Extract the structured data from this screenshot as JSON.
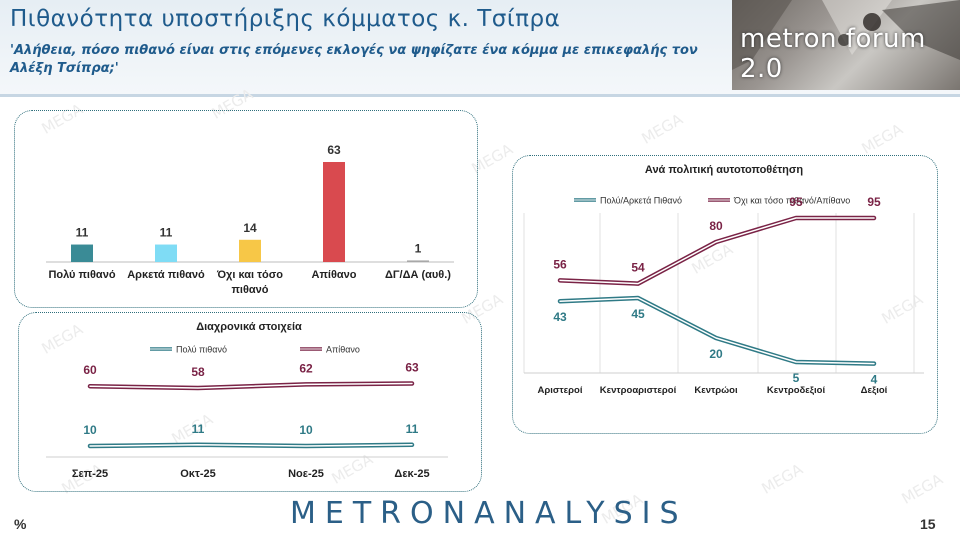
{
  "header": {
    "title": "Πιθανότητα υποστήριξης κόμματος κ. Τσίπρα",
    "subtitle": "'Αλήθεια, πόσο πιθανό είναι στις επόμενες εκλογές να ψηφίζατε ένα κόμμα με επικεφαλής τον Αλέξη Τσίπρα;'",
    "forum_label": "metron forum 2.0"
  },
  "footer": {
    "unit": "%",
    "brand": "METRONANALYSIS",
    "page": "15"
  },
  "watermark": "MEGA",
  "colors": {
    "series_teal": "#2f7a86",
    "series_maroon": "#7a2346",
    "bar_teal": "#3a8b96",
    "bar_cyan": "#7fdcf5",
    "bar_yellow": "#f7c747",
    "bar_red": "#d94a4f",
    "bar_gray": "#a8a8a8"
  },
  "chart_data": [
    {
      "type": "bar",
      "title": "",
      "categories": [
        "Πολύ πιθανό",
        "Αρκετά πιθανό",
        "Όχι και τόσο πιθανό",
        "Απίθανο",
        "ΔΓ/ΔΑ (αυθ.)"
      ],
      "category_lines": [
        [
          "Πολύ πιθανό"
        ],
        [
          "Αρκετά πιθανό"
        ],
        [
          "Όχι και τόσο",
          "πιθανό"
        ],
        [
          "Απίθανο"
        ],
        [
          "ΔΓ/ΔΑ (αυθ.)"
        ]
      ],
      "values": [
        11,
        11,
        14,
        63,
        1
      ],
      "ylim": [
        0,
        70
      ],
      "grid": false
    },
    {
      "type": "line",
      "title": "Διαχρονικά στοιχεία",
      "categories": [
        "Σεπ-25",
        "Οκτ-25",
        "Νοε-25",
        "Δεκ-25"
      ],
      "series": [
        {
          "name": "Πολύ πιθανό",
          "values": [
            10,
            11,
            10,
            11
          ]
        },
        {
          "name": "Απίθανο",
          "values": [
            60,
            58,
            62,
            63
          ]
        }
      ],
      "ylim": [
        0,
        70
      ],
      "legend": "top",
      "grid": false
    },
    {
      "type": "line",
      "title": "Ανά πολιτική αυτοτοποθέτηση",
      "categories": [
        "Αριστεροί",
        "Κεντροαριστεροί",
        "Κεντρώοι",
        "Κεντροδεξιοί",
        "Δεξιοί"
      ],
      "series": [
        {
          "name": "Πολύ/Αρκετά Πιθανό",
          "values": [
            43,
            45,
            20,
            5,
            4
          ]
        },
        {
          "name": "Όχι και τόσο πιθανό/Απίθανο",
          "values": [
            56,
            54,
            80,
            95,
            95
          ]
        }
      ],
      "ylim": [
        0,
        100
      ],
      "legend": "top",
      "grid": true
    }
  ]
}
